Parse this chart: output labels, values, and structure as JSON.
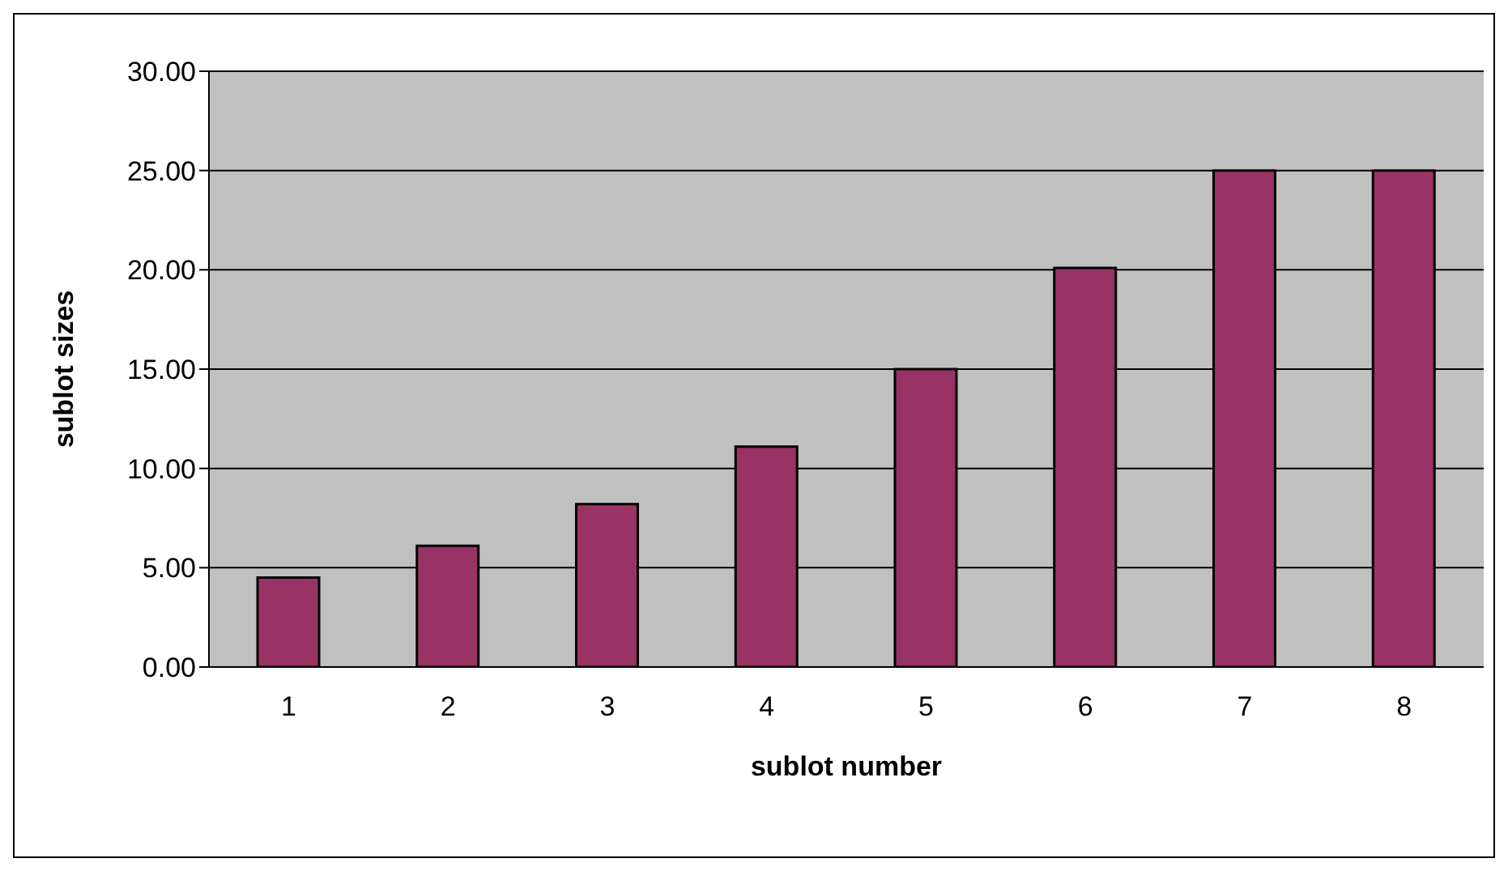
{
  "chart_data": {
    "type": "bar",
    "xlabel": "sublot number",
    "ylabel": "sublot sizes",
    "categories": [
      "1",
      "2",
      "3",
      "4",
      "5",
      "6",
      "7",
      "8"
    ],
    "values": [
      4.5,
      6.1,
      8.2,
      11.1,
      15,
      20.1,
      25,
      25
    ],
    "color": "#993366",
    "ylim": [
      0,
      30
    ],
    "yticks": [
      {
        "value": 0,
        "label": "0.00"
      },
      {
        "value": 5,
        "label": "5.00"
      },
      {
        "value": 10,
        "label": "10.00"
      },
      {
        "value": 15,
        "label": "15.00"
      },
      {
        "value": 20,
        "label": "20.00"
      },
      {
        "value": 25,
        "label": "25.00"
      },
      {
        "value": 30,
        "label": "30.00"
      }
    ],
    "grid": "y"
  }
}
